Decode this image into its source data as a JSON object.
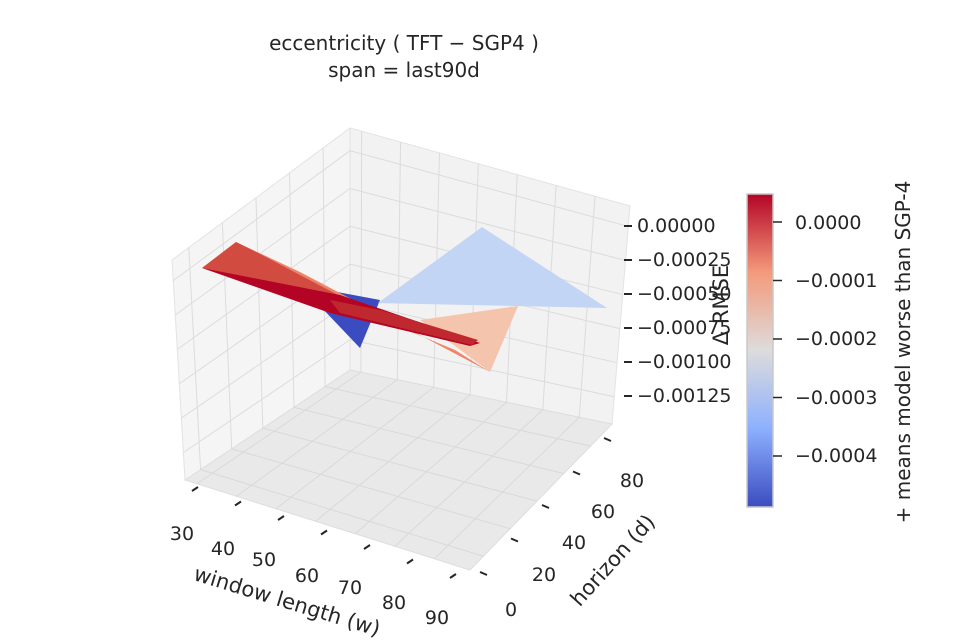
{
  "chart_data": {
    "type": "surface3d",
    "title": "eccentricity  ( TFT − SGP4 )",
    "subtitle": "span = last90d",
    "xlabel": "window length (w)",
    "ylabel": "horizon (d)",
    "zlabel": "Δ RMSE",
    "x_ticks": [
      "30",
      "40",
      "50",
      "60",
      "70",
      "80",
      "90"
    ],
    "y_ticks": [
      "0",
      "20",
      "40",
      "60",
      "80"
    ],
    "z_ticks": [
      "0.00000",
      "−0.00025",
      "−0.00050",
      "−0.00075",
      "−0.00100",
      "−0.00125"
    ],
    "colormap": "coolwarm",
    "colorbar": {
      "label": "+ means model worse than SGP-4",
      "ticks": [
        "0.0000",
        "−0.0001",
        "−0.0002",
        "−0.0003",
        "−0.0004"
      ],
      "tick_values": [
        0.0,
        -0.0001,
        -0.0002,
        -0.0003,
        -0.0004
      ],
      "range": [
        -0.00049,
        5e-05
      ]
    },
    "surface_value_range": [
      -0.00049,
      4e-05
    ],
    "grid": true,
    "colors": [
      "#3b4cc0",
      "#c3d5f4",
      "#f4c4ad",
      "#ee8569",
      "#b40426"
    ]
  }
}
